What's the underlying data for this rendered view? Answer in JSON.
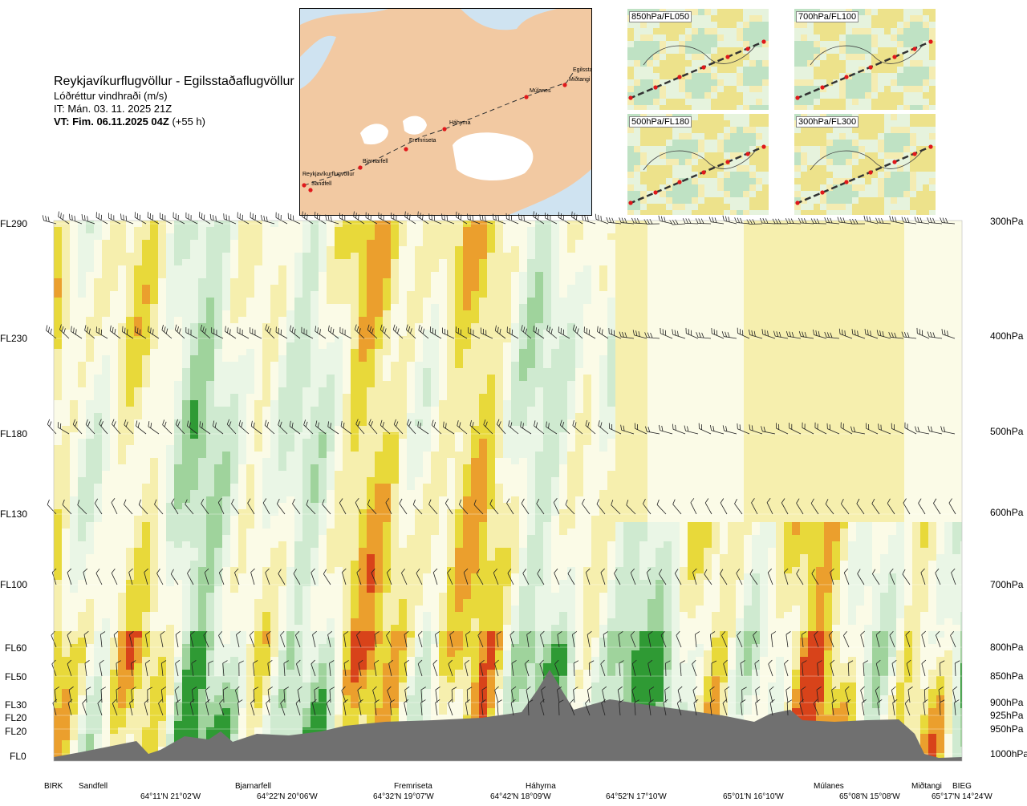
{
  "header": {
    "route": "Reykjavíkurflugvöllur - Egilsstaðaflugvöllur",
    "variable": "Lóðréttur vindhraði (m/s)",
    "issue_time": "IT: Mán. 03. 11. 2025 21Z",
    "valid_time_bold": "VT: Fim. 06.11.2025 04Z",
    "valid_offset": "(+55 h)"
  },
  "map": {
    "labels": [
      "Reykjavíkurflugvöllur",
      "Sandfell",
      "Bjarnarfell",
      "Fremriseta",
      "Háhyrna",
      "Múlanes",
      "Miðtangi",
      "Egilsstaðir"
    ]
  },
  "thumbnails": [
    {
      "label": "850hPa/FL050"
    },
    {
      "label": "700hPa/FL100"
    },
    {
      "label": "500hPa/FL180"
    },
    {
      "label": "300hPa/FL300"
    }
  ],
  "chart_data": {
    "type": "heatmap",
    "title": "Lóðréttur vindhraði (m/s)",
    "levels": [
      {
        "fl": "FL290",
        "pressure": "300hPa"
      },
      {
        "fl": "FL230",
        "pressure": "400hPa"
      },
      {
        "fl": "FL180",
        "pressure": "500hPa"
      },
      {
        "fl": "FL130",
        "pressure": "600hPa"
      },
      {
        "fl": "FL100",
        "pressure": "700hPa"
      },
      {
        "fl": "FL60",
        "pressure": "800hPa"
      },
      {
        "fl": "FL50",
        "pressure": "850hPa"
      },
      {
        "fl": "FL30",
        "pressure": "900hPa"
      },
      {
        "fl": "FL20",
        "pressure": "925hPa"
      },
      {
        "fl": "FL20",
        "pressure": "950hPa"
      },
      {
        "fl": "FL0",
        "pressure": "1000hPa"
      }
    ],
    "waypoints": [
      "BIRK",
      "Sandfell",
      "Bjarnarfell",
      "Fremriseta",
      "Háhyrna",
      "Múlanes",
      "Miðtangi",
      "BIEG"
    ],
    "coordinates": [
      "64°11'N 21°02'W",
      "64°22'N 20°06'W",
      "64°32'N 19°07'W",
      "64°42'N 18°09'W",
      "64°52'N 17°10'W",
      "65°01'N 16°10'W",
      "65°08'N 15°08'W",
      "65°17'N 14°24'W"
    ],
    "colors": {
      "up_strong": "#d8431a",
      "up_mid": "#eb9f2d",
      "up_light": "#e8d93a",
      "up_faint": "#f6efae",
      "neutral": "#fbfbe7",
      "down_faint": "#eaf6e6",
      "down_light": "#cfead0",
      "down_mid": "#9fd39c",
      "down_strong": "#2f9a34",
      "terrain": "#707070"
    }
  }
}
